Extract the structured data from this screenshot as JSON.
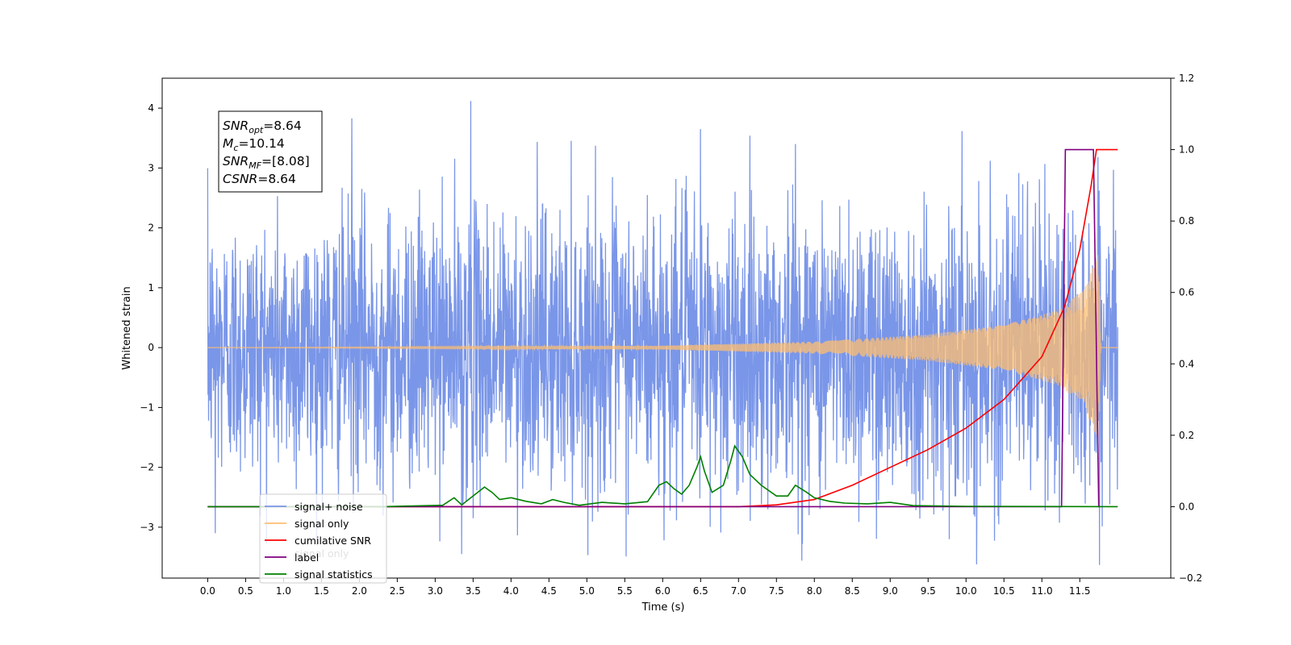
{
  "chart_data": {
    "type": "line",
    "xlabel": "Time (s)",
    "ylabel_left": "Whitened strain",
    "ylabel_right": "",
    "xlim": [
      -0.6,
      12.7
    ],
    "ylim_left": [
      -3.85,
      4.5
    ],
    "ylim_right": [
      -0.2,
      1.2
    ],
    "x_ticks": [
      0.0,
      0.5,
      1.0,
      1.5,
      2.0,
      2.5,
      3.0,
      3.5,
      4.0,
      4.5,
      5.0,
      5.5,
      6.0,
      6.5,
      7.0,
      7.5,
      8.0,
      8.5,
      9.0,
      9.5,
      10.0,
      10.5,
      11.0,
      11.5
    ],
    "y_ticks_left": [
      -3,
      -2,
      -1,
      0,
      1,
      2,
      3,
      4
    ],
    "y_ticks_right": [
      -0.2,
      0.0,
      0.2,
      0.4,
      0.6,
      0.8,
      1.0,
      1.2
    ],
    "grid": false,
    "legend_position": "bottom-left",
    "series": [
      {
        "name": "signal+ noise",
        "axis": "left",
        "color": "#7a96e8",
        "style": "noise",
        "x_range": [
          0.0,
          12.0
        ],
        "amplitude_envelope": [
          [
            0.0,
            2.4
          ],
          [
            6.0,
            2.6
          ],
          [
            11.0,
            2.7
          ],
          [
            11.7,
            2.9
          ],
          [
            12.0,
            2.4
          ]
        ],
        "peak_points": [
          [
            1.9,
            3.83
          ],
          [
            3.47,
            4.12
          ],
          [
            6.5,
            3.65
          ],
          [
            7.75,
            3.4
          ],
          [
            6.02,
            -3.22
          ],
          [
            3.35,
            -3.45
          ],
          [
            9.78,
            -3.2
          ],
          [
            0.1,
            -3.1
          ]
        ]
      },
      {
        "name": "signal only",
        "axis": "left",
        "color": "#ffbe70",
        "style": "chirp",
        "x_range": [
          0.0,
          12.0
        ],
        "envelope": [
          [
            0.0,
            0.0
          ],
          [
            6.0,
            0.03
          ],
          [
            8.0,
            0.1
          ],
          [
            9.5,
            0.22
          ],
          [
            10.5,
            0.38
          ],
          [
            11.2,
            0.62
          ],
          [
            11.55,
            0.95
          ],
          [
            11.75,
            1.6
          ],
          [
            11.78,
            0.0
          ]
        ]
      },
      {
        "name": "cumilative SNR",
        "axis": "right",
        "color": "#ff0000",
        "style": "line",
        "points": [
          [
            0.0,
            0.0
          ],
          [
            7.0,
            0.0
          ],
          [
            7.5,
            0.005
          ],
          [
            8.0,
            0.02
          ],
          [
            8.5,
            0.06
          ],
          [
            9.0,
            0.11
          ],
          [
            9.5,
            0.16
          ],
          [
            10.0,
            0.22
          ],
          [
            10.5,
            0.3
          ],
          [
            11.0,
            0.42
          ],
          [
            11.3,
            0.56
          ],
          [
            11.5,
            0.72
          ],
          [
            11.65,
            0.9
          ],
          [
            11.72,
            1.0
          ],
          [
            12.0,
            1.0
          ]
        ]
      },
      {
        "name": "label",
        "axis": "right",
        "color": "#800080",
        "style": "line",
        "points": [
          [
            0.0,
            0.0
          ],
          [
            11.26,
            0.0
          ],
          [
            11.31,
            1.0
          ],
          [
            11.68,
            1.0
          ],
          [
            11.75,
            0.0
          ],
          [
            11.76,
            0.0
          ]
        ]
      },
      {
        "name": "signal statistics",
        "axis": "right",
        "color": "#008000",
        "style": "line",
        "points": [
          [
            0.0,
            0.0
          ],
          [
            2.3,
            0.0
          ],
          [
            2.7,
            0.002
          ],
          [
            3.1,
            0.004
          ],
          [
            3.25,
            0.025
          ],
          [
            3.35,
            0.005
          ],
          [
            3.5,
            0.03
          ],
          [
            3.65,
            0.055
          ],
          [
            3.75,
            0.04
          ],
          [
            3.85,
            0.02
          ],
          [
            4.0,
            0.025
          ],
          [
            4.2,
            0.015
          ],
          [
            4.4,
            0.008
          ],
          [
            4.55,
            0.02
          ],
          [
            4.7,
            0.012
          ],
          [
            4.9,
            0.004
          ],
          [
            5.2,
            0.012
          ],
          [
            5.5,
            0.008
          ],
          [
            5.8,
            0.014
          ],
          [
            5.95,
            0.06
          ],
          [
            6.05,
            0.07
          ],
          [
            6.15,
            0.05
          ],
          [
            6.25,
            0.035
          ],
          [
            6.35,
            0.06
          ],
          [
            6.45,
            0.11
          ],
          [
            6.5,
            0.14
          ],
          [
            6.55,
            0.1
          ],
          [
            6.65,
            0.04
          ],
          [
            6.8,
            0.06
          ],
          [
            6.9,
            0.13
          ],
          [
            6.95,
            0.17
          ],
          [
            7.05,
            0.14
          ],
          [
            7.15,
            0.09
          ],
          [
            7.3,
            0.06
          ],
          [
            7.5,
            0.03
          ],
          [
            7.65,
            0.03
          ],
          [
            7.75,
            0.06
          ],
          [
            7.9,
            0.04
          ],
          [
            8.0,
            0.025
          ],
          [
            8.2,
            0.015
          ],
          [
            8.4,
            0.01
          ],
          [
            8.7,
            0.008
          ],
          [
            9.0,
            0.012
          ],
          [
            9.3,
            0.003
          ],
          [
            10.0,
            0.001
          ],
          [
            12.0,
            0.0
          ]
        ]
      }
    ],
    "annotation": {
      "lines": [
        {
          "symbol": "SNR",
          "sub": "opt",
          "value": "=8.64"
        },
        {
          "symbol": "M",
          "sub": "c",
          "value": "=10.14"
        },
        {
          "symbol": "SNR",
          "sub": "MF",
          "value": "=[8.08]"
        },
        {
          "symbol": "CSNR",
          "sub": "",
          "value": "=8.64"
        }
      ]
    },
    "legend_overlap_text": {
      "label_2": "label",
      "overlap": "signal only"
    }
  }
}
